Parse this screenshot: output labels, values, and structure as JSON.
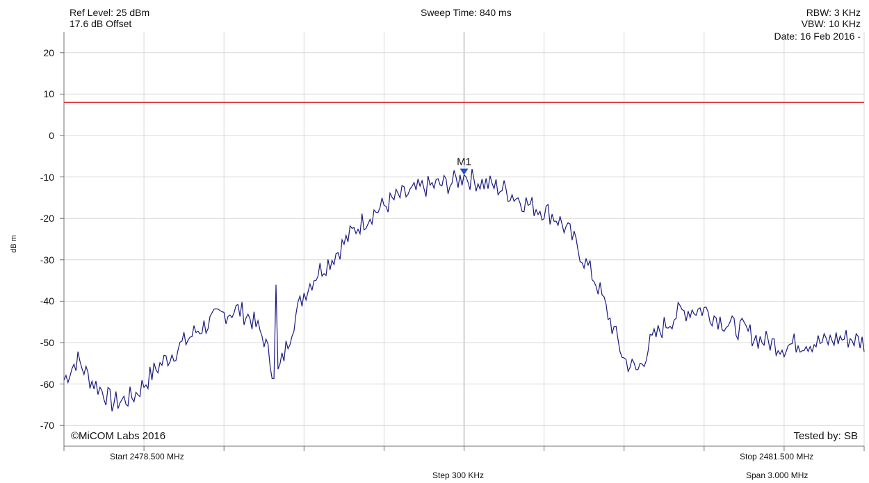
{
  "header": {
    "ref_level": "Ref Level: 25 dBm",
    "offset": "17.6 dB Offset",
    "sweep_time": "Sweep Time: 840 ms",
    "rbw": "RBW: 3 KHz",
    "vbw": "VBW: 10 KHz",
    "date": "Date: 16 Feb 2016 -"
  },
  "footer": {
    "start": "Start 2478.500 MHz",
    "stop": "Stop 2481.500 MHz",
    "step": "Step 300 KHz",
    "span": "Span 3.000 MHz",
    "copyright": "©MiCOM Labs 2016",
    "tested_by": "Tested by: SB"
  },
  "colors": {
    "trace": "#1a1a80",
    "limit": "#e03030",
    "marker": "#1f4fd8",
    "grid": "#d8d8d8",
    "axis": "#707070"
  },
  "chart_data": {
    "type": "line",
    "xlabel": "",
    "ylabel": "dB m",
    "xlim": [
      2478.5,
      2481.5
    ],
    "ylim": [
      -75,
      25
    ],
    "yticks": [
      20,
      10,
      0,
      -10,
      -20,
      -30,
      -40,
      -50,
      -60,
      -70
    ],
    "ytick_labels": [
      "20",
      "10",
      "0",
      "-10",
      "-20",
      "-30",
      "-40",
      "-50",
      "-60",
      "-70"
    ],
    "grid": true,
    "limit_line": {
      "y": 8
    },
    "marker": {
      "label": "M1",
      "x": 2480.0,
      "y": -9.5
    },
    "series": [
      {
        "x": [
          2478.5,
          2478.53,
          2478.55,
          2478.6,
          2478.65,
          2478.68,
          2478.72,
          2478.76,
          2478.8,
          2478.85,
          2478.9,
          2478.95,
          2479.0,
          2479.05,
          2479.1,
          2479.15,
          2479.2,
          2479.25,
          2479.28,
          2479.3,
          2479.33,
          2479.36,
          2479.4,
          2479.45,
          2479.5,
          2479.55,
          2479.6,
          2479.65,
          2479.7,
          2479.75,
          2479.8,
          2479.85,
          2479.9,
          2479.95,
          2480.0,
          2480.05,
          2480.1,
          2480.15,
          2480.2,
          2480.25,
          2480.3,
          2480.35,
          2480.4,
          2480.45,
          2480.5,
          2480.55,
          2480.6,
          2480.65,
          2480.7,
          2480.75,
          2480.8,
          2480.85,
          2480.9,
          2480.95,
          2481.0,
          2481.05,
          2481.1,
          2481.15,
          2481.2,
          2481.25,
          2481.3,
          2481.35,
          2481.4,
          2481.45,
          2481.5
        ],
        "y": [
          -59,
          -56,
          -54,
          -59,
          -62,
          -64.5,
          -64,
          -63,
          -60,
          -56,
          -53,
          -50,
          -47,
          -45,
          -43,
          -42,
          -44,
          -49,
          -56,
          -58,
          -52,
          -45,
          -38,
          -33,
          -30,
          -26,
          -22,
          -19,
          -17,
          -15,
          -14,
          -12.5,
          -12,
          -11.5,
          -10,
          -11,
          -12,
          -13,
          -15,
          -17,
          -18,
          -20,
          -24,
          -30,
          -36,
          -45,
          -54,
          -57,
          -50,
          -46,
          -43,
          -42,
          -42,
          -44,
          -46,
          -47,
          -49,
          -50,
          -51,
          -50,
          -50,
          -50,
          -49,
          -49,
          -50
        ]
      }
    ]
  }
}
